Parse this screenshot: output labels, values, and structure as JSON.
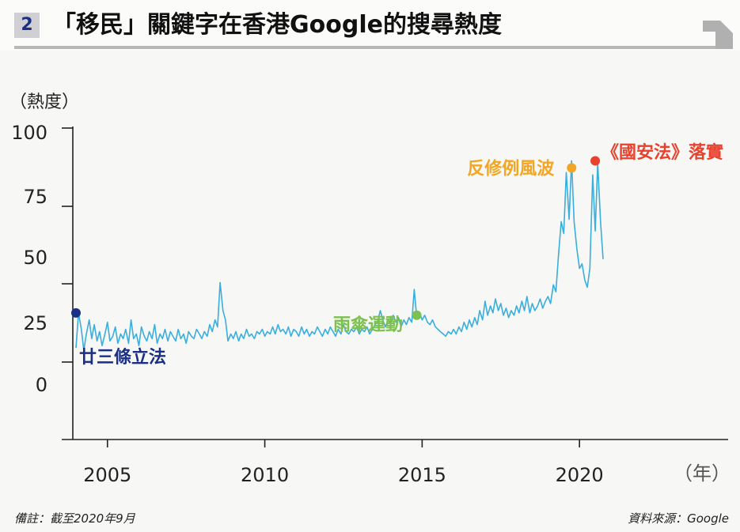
{
  "header": {
    "figure_number": "2",
    "title": "「移民」關鍵字在香港Google的搜尋熱度"
  },
  "footer": {
    "note": "備註：截至2020年9月",
    "source": "資料來源：Google"
  },
  "colors": {
    "line": "#3aaedc",
    "axis": "#222222",
    "event_2003": "#1b2f86",
    "event_2014": "#7cc04f",
    "event_2019": "#f2a623",
    "event_2020": "#e8412c"
  },
  "chart_data": {
    "type": "line",
    "title": "「移民」關鍵字在香港Google的搜尋熱度",
    "ylabel": "（熱度）",
    "xlabel": "（年）",
    "ylim": [
      0,
      100
    ],
    "xlim": [
      2004.0,
      2020.75
    ],
    "y_ticks": [
      "100",
      "75",
      "50",
      "25",
      "0"
    ],
    "x_ticks": [
      "2005",
      "2010",
      "2015",
      "2020"
    ],
    "grid": false,
    "series": [
      {
        "values": [
          [
            2004.0,
            6
          ],
          [
            2004.08,
            21
          ],
          [
            2004.17,
            14
          ],
          [
            2004.25,
            5
          ],
          [
            2004.33,
            12
          ],
          [
            2004.42,
            18
          ],
          [
            2004.5,
            10
          ],
          [
            2004.58,
            16
          ],
          [
            2004.67,
            9
          ],
          [
            2004.75,
            13
          ],
          [
            2004.83,
            7
          ],
          [
            2004.92,
            12
          ],
          [
            2005.0,
            17
          ],
          [
            2005.08,
            9
          ],
          [
            2005.17,
            11
          ],
          [
            2005.25,
            15
          ],
          [
            2005.33,
            8
          ],
          [
            2005.42,
            12
          ],
          [
            2005.5,
            10
          ],
          [
            2005.58,
            14
          ],
          [
            2005.67,
            8
          ],
          [
            2005.75,
            18
          ],
          [
            2005.83,
            10
          ],
          [
            2005.92,
            12
          ],
          [
            2006.0,
            7
          ],
          [
            2006.08,
            15
          ],
          [
            2006.17,
            11
          ],
          [
            2006.25,
            9
          ],
          [
            2006.33,
            13
          ],
          [
            2006.42,
            10
          ],
          [
            2006.5,
            16
          ],
          [
            2006.58,
            8
          ],
          [
            2006.67,
            12
          ],
          [
            2006.75,
            10
          ],
          [
            2006.83,
            14
          ],
          [
            2006.92,
            9
          ],
          [
            2007.0,
            13
          ],
          [
            2007.08,
            11
          ],
          [
            2007.17,
            9
          ],
          [
            2007.25,
            14
          ],
          [
            2007.33,
            10
          ],
          [
            2007.42,
            12
          ],
          [
            2007.5,
            8
          ],
          [
            2007.58,
            13
          ],
          [
            2007.67,
            11
          ],
          [
            2007.75,
            10
          ],
          [
            2007.83,
            14
          ],
          [
            2007.92,
            12
          ],
          [
            2008.0,
            10
          ],
          [
            2008.08,
            13
          ],
          [
            2008.17,
            11
          ],
          [
            2008.25,
            16
          ],
          [
            2008.33,
            13
          ],
          [
            2008.42,
            18
          ],
          [
            2008.5,
            15
          ],
          [
            2008.58,
            34
          ],
          [
            2008.67,
            22
          ],
          [
            2008.75,
            18
          ],
          [
            2008.83,
            9
          ],
          [
            2008.92,
            12
          ],
          [
            2009.0,
            10
          ],
          [
            2009.08,
            13
          ],
          [
            2009.17,
            9
          ],
          [
            2009.25,
            12
          ],
          [
            2009.33,
            10
          ],
          [
            2009.42,
            14
          ],
          [
            2009.5,
            11
          ],
          [
            2009.58,
            12
          ],
          [
            2009.67,
            10
          ],
          [
            2009.75,
            13
          ],
          [
            2009.83,
            12
          ],
          [
            2009.92,
            14
          ],
          [
            2010.0,
            11
          ],
          [
            2010.08,
            13
          ],
          [
            2010.17,
            12
          ],
          [
            2010.25,
            15
          ],
          [
            2010.33,
            12
          ],
          [
            2010.42,
            16
          ],
          [
            2010.5,
            13
          ],
          [
            2010.58,
            14
          ],
          [
            2010.67,
            12
          ],
          [
            2010.75,
            15
          ],
          [
            2010.83,
            11
          ],
          [
            2010.92,
            14
          ],
          [
            2011.0,
            13
          ],
          [
            2011.08,
            11
          ],
          [
            2011.17,
            15
          ],
          [
            2011.25,
            12
          ],
          [
            2011.33,
            14
          ],
          [
            2011.42,
            11
          ],
          [
            2011.5,
            13
          ],
          [
            2011.58,
            12
          ],
          [
            2011.67,
            15
          ],
          [
            2011.75,
            13
          ],
          [
            2011.83,
            11
          ],
          [
            2011.92,
            14
          ],
          [
            2012.0,
            12
          ],
          [
            2012.08,
            15
          ],
          [
            2012.17,
            13
          ],
          [
            2012.25,
            11
          ],
          [
            2012.33,
            14
          ],
          [
            2012.42,
            12
          ],
          [
            2012.5,
            16
          ],
          [
            2012.58,
            13
          ],
          [
            2012.67,
            12
          ],
          [
            2012.75,
            14
          ],
          [
            2012.83,
            13
          ],
          [
            2012.92,
            15
          ],
          [
            2013.0,
            12
          ],
          [
            2013.08,
            14
          ],
          [
            2013.17,
            13
          ],
          [
            2013.25,
            15
          ],
          [
            2013.33,
            12
          ],
          [
            2013.42,
            14
          ],
          [
            2013.5,
            16
          ],
          [
            2013.58,
            17
          ],
          [
            2013.67,
            22
          ],
          [
            2013.75,
            18
          ],
          [
            2013.83,
            15
          ],
          [
            2013.92,
            18
          ],
          [
            2014.0,
            16
          ],
          [
            2014.08,
            20
          ],
          [
            2014.17,
            17
          ],
          [
            2014.25,
            19
          ],
          [
            2014.33,
            15
          ],
          [
            2014.42,
            18
          ],
          [
            2014.5,
            16
          ],
          [
            2014.58,
            19
          ],
          [
            2014.67,
            17
          ],
          [
            2014.75,
            31
          ],
          [
            2014.83,
            19
          ],
          [
            2014.92,
            21
          ],
          [
            2015.0,
            18
          ],
          [
            2015.08,
            20
          ],
          [
            2015.17,
            17
          ],
          [
            2015.25,
            16
          ],
          [
            2015.33,
            18
          ],
          [
            2015.42,
            15
          ],
          [
            2015.5,
            14
          ],
          [
            2015.58,
            13
          ],
          [
            2015.67,
            12
          ],
          [
            2015.75,
            11
          ],
          [
            2015.83,
            13
          ],
          [
            2015.92,
            12
          ],
          [
            2016.0,
            14
          ],
          [
            2016.08,
            12
          ],
          [
            2016.17,
            15
          ],
          [
            2016.25,
            13
          ],
          [
            2016.33,
            17
          ],
          [
            2016.42,
            14
          ],
          [
            2016.5,
            18
          ],
          [
            2016.58,
            15
          ],
          [
            2016.67,
            19
          ],
          [
            2016.75,
            16
          ],
          [
            2016.83,
            22
          ],
          [
            2016.92,
            18
          ],
          [
            2017.0,
            26
          ],
          [
            2017.08,
            20
          ],
          [
            2017.17,
            24
          ],
          [
            2017.25,
            21
          ],
          [
            2017.33,
            27
          ],
          [
            2017.42,
            22
          ],
          [
            2017.5,
            25
          ],
          [
            2017.58,
            20
          ],
          [
            2017.67,
            23
          ],
          [
            2017.75,
            19
          ],
          [
            2017.83,
            22
          ],
          [
            2017.92,
            20
          ],
          [
            2018.0,
            24
          ],
          [
            2018.08,
            21
          ],
          [
            2018.17,
            26
          ],
          [
            2018.25,
            22
          ],
          [
            2018.33,
            28
          ],
          [
            2018.42,
            21
          ],
          [
            2018.5,
            25
          ],
          [
            2018.58,
            22
          ],
          [
            2018.67,
            24
          ],
          [
            2018.75,
            27
          ],
          [
            2018.83,
            23
          ],
          [
            2018.92,
            26
          ],
          [
            2019.0,
            28
          ],
          [
            2019.08,
            25
          ],
          [
            2019.17,
            33
          ],
          [
            2019.25,
            30
          ],
          [
            2019.33,
            45
          ],
          [
            2019.42,
            60
          ],
          [
            2019.5,
            55
          ],
          [
            2019.58,
            81
          ],
          [
            2019.67,
            61
          ],
          [
            2019.75,
            86
          ],
          [
            2019.83,
            60
          ],
          [
            2019.92,
            48
          ],
          [
            2020.0,
            40
          ],
          [
            2020.08,
            42
          ],
          [
            2020.17,
            35
          ],
          [
            2020.25,
            32
          ],
          [
            2020.33,
            40
          ],
          [
            2020.42,
            80
          ],
          [
            2020.5,
            56
          ],
          [
            2020.58,
            85
          ],
          [
            2020.67,
            60
          ],
          [
            2020.75,
            44
          ]
        ]
      }
    ],
    "annotations": [
      {
        "text": "廿三條立法",
        "x": 2004.0,
        "y": 21,
        "color_key": "event_2003"
      },
      {
        "text": "雨傘運動",
        "x": 2014.83,
        "y": 20,
        "color_key": "event_2014"
      },
      {
        "text": "反修例風波",
        "x": 2019.75,
        "y": 83,
        "color_key": "event_2019"
      },
      {
        "text": "《國安法》落實",
        "x": 2020.5,
        "y": 86,
        "color_key": "event_2020"
      }
    ]
  }
}
